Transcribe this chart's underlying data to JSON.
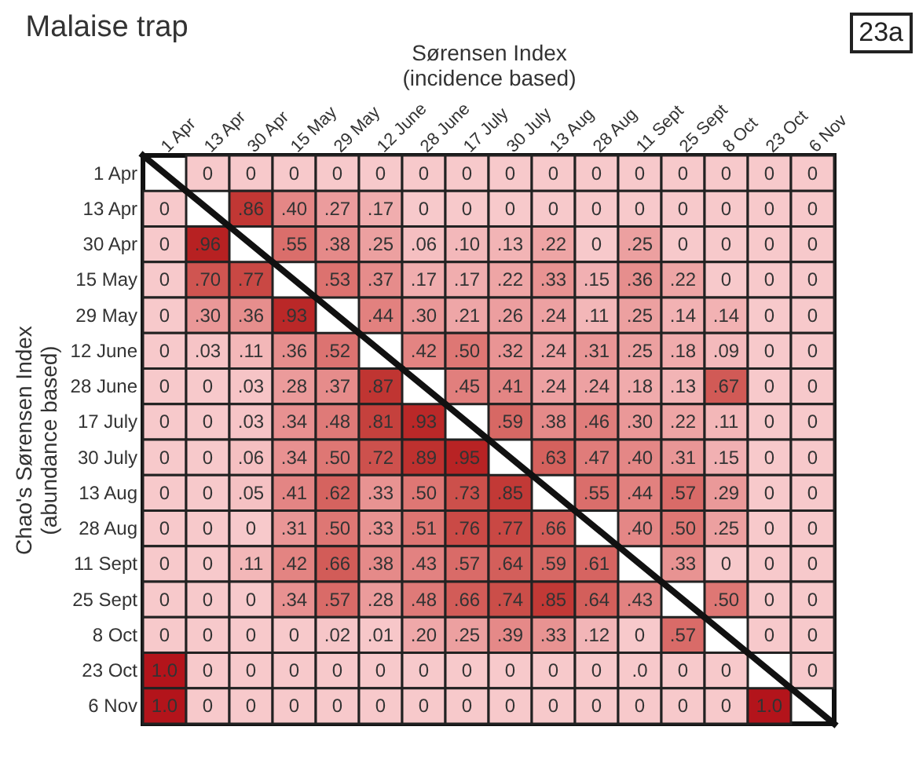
{
  "chart_data": {
    "type": "heatmap",
    "title": "Malaise trap",
    "xlabel": "Sørensen Index\n(incidence  based)",
    "ylabel": "Chao's Sørensen Index\n(abundance based)",
    "annotations": [
      "23a"
    ],
    "categories": [
      "1 Apr",
      "13 Apr",
      "30 Apr",
      "15 May",
      "29 May",
      "12 June",
      "28 June",
      "17 July",
      "30 July",
      "13 Aug",
      "28 Aug",
      "11 Sept",
      "25 Sept",
      "8 Oct",
      "23 Oct",
      "6 Nov"
    ],
    "y_categories": [
      "1 Apr",
      "13 Apr",
      "30 Apr",
      "15 May",
      "29 May",
      "12 June",
      "28 June",
      "17 July",
      "30 July",
      "13 Aug",
      "28 Aug",
      "11 Sept",
      "25 Sept",
      "8 Oct",
      "23 Oct",
      "6 Nov"
    ],
    "cells": [
      [
        null,
        0,
        0,
        0,
        0,
        0,
        0,
        0,
        0,
        0,
        0,
        0,
        0,
        0,
        0,
        0
      ],
      [
        0,
        null,
        0.86,
        0.4,
        0.27,
        0.17,
        0,
        0,
        0,
        0,
        0,
        0,
        0,
        0,
        0,
        0
      ],
      [
        0,
        0.96,
        null,
        0.55,
        0.38,
        0.25,
        0.06,
        0.1,
        0.13,
        0.22,
        0,
        0.25,
        0,
        0,
        0,
        0
      ],
      [
        0,
        0.7,
        0.77,
        null,
        0.53,
        0.37,
        0.17,
        0.17,
        0.22,
        0.33,
        0.15,
        0.36,
        0.22,
        0,
        0,
        0
      ],
      [
        0,
        0.3,
        0.36,
        0.93,
        null,
        0.44,
        0.3,
        0.21,
        0.26,
        0.24,
        0.11,
        0.25,
        0.14,
        0.14,
        0,
        0
      ],
      [
        0,
        0.03,
        0.11,
        0.36,
        0.52,
        null,
        0.42,
        0.5,
        0.32,
        0.24,
        0.31,
        0.25,
        0.18,
        0.09,
        0,
        0
      ],
      [
        0,
        0,
        0.03,
        0.28,
        0.37,
        0.87,
        null,
        0.45,
        0.41,
        0.24,
        0.24,
        0.18,
        0.13,
        0.67,
        0,
        0
      ],
      [
        0,
        0,
        0.03,
        0.34,
        0.48,
        0.81,
        0.93,
        null,
        0.59,
        0.38,
        0.46,
        0.3,
        0.22,
        0.11,
        0,
        0
      ],
      [
        0,
        0,
        0.06,
        0.34,
        0.5,
        0.72,
        0.89,
        0.95,
        null,
        0.63,
        0.47,
        0.4,
        0.31,
        0.15,
        0,
        0
      ],
      [
        0,
        0,
        0.05,
        0.41,
        0.62,
        0.33,
        0.5,
        0.73,
        0.85,
        null,
        0.55,
        0.44,
        0.57,
        0.29,
        0,
        0
      ],
      [
        0,
        0,
        0,
        0.31,
        0.5,
        0.33,
        0.51,
        0.76,
        0.77,
        0.66,
        null,
        0.4,
        0.5,
        0.25,
        0,
        0
      ],
      [
        0,
        0,
        0.11,
        0.42,
        0.66,
        0.38,
        0.43,
        0.57,
        0.64,
        0.59,
        0.61,
        null,
        0.33,
        0,
        0,
        0
      ],
      [
        0,
        0,
        0,
        0.34,
        0.57,
        0.28,
        0.48,
        0.66,
        0.74,
        0.85,
        0.64,
        0.43,
        null,
        0.5,
        0,
        0
      ],
      [
        0,
        0,
        0,
        0,
        0.02,
        0.01,
        0.2,
        0.25,
        0.39,
        0.33,
        0.12,
        0,
        0.57,
        null,
        0,
        0
      ],
      [
        1.0,
        0,
        0,
        0,
        0,
        0,
        0,
        0,
        0,
        0,
        0,
        0,
        0,
        0,
        null,
        0
      ],
      [
        1.0,
        0,
        0,
        0,
        0,
        0,
        0,
        0,
        0,
        0,
        0,
        0,
        0,
        0,
        1.0,
        null
      ]
    ],
    "cell_labels": [
      [
        null,
        "0",
        "0",
        "0",
        "0",
        "0",
        "0",
        "0",
        "0",
        "0",
        "0",
        "0",
        "0",
        "0",
        "0",
        "0"
      ],
      [
        "0",
        null,
        ".86",
        ".40",
        ".27",
        ".17",
        "0",
        "0",
        "0",
        "0",
        "0",
        "0",
        "0",
        "0",
        "0",
        "0"
      ],
      [
        "0",
        ".96",
        null,
        ".55",
        ".38",
        ".25",
        ".06",
        ".10",
        ".13",
        ".22",
        "0",
        ".25",
        "0",
        "0",
        "0",
        "0"
      ],
      [
        "0",
        ".70",
        ".77",
        null,
        ".53",
        ".37",
        ".17",
        ".17",
        ".22",
        ".33",
        ".15",
        ".36",
        ".22",
        "0",
        "0",
        "0"
      ],
      [
        "0",
        ".30",
        ".36",
        ".93",
        null,
        ".44",
        ".30",
        ".21",
        ".26",
        ".24",
        ".11",
        ".25",
        ".14",
        ".14",
        "0",
        "0"
      ],
      [
        "0",
        ".03",
        ".11",
        ".36",
        ".52",
        null,
        ".42",
        ".50",
        ".32",
        ".24",
        ".31",
        ".25",
        ".18",
        ".09",
        "0",
        "0"
      ],
      [
        "0",
        "0",
        ".03",
        ".28",
        ".37",
        ".87",
        null,
        ".45",
        ".41",
        ".24",
        ".24",
        ".18",
        ".13",
        ".67",
        "0",
        "0"
      ],
      [
        "0",
        "0",
        ".03",
        ".34",
        ".48",
        ".81",
        ".93",
        null,
        ".59",
        ".38",
        ".46",
        ".30",
        ".22",
        ".11",
        "0",
        "0"
      ],
      [
        "0",
        "0",
        ".06",
        ".34",
        ".50",
        ".72",
        ".89",
        ".95",
        null,
        ".63",
        ".47",
        ".40",
        ".31",
        ".15",
        "0",
        "0"
      ],
      [
        "0",
        "0",
        ".05",
        ".41",
        ".62",
        ".33",
        ".50",
        ".73",
        ".85",
        null,
        ".55",
        ".44",
        ".57",
        ".29",
        "0",
        "0"
      ],
      [
        "0",
        "0",
        "0",
        ".31",
        ".50",
        ".33",
        ".51",
        ".76",
        ".77",
        ".66",
        null,
        ".40",
        ".50",
        ".25",
        "0",
        "0"
      ],
      [
        "0",
        "0",
        ".11",
        ".42",
        ".66",
        ".38",
        ".43",
        ".57",
        ".64",
        ".59",
        ".61",
        null,
        ".33",
        "0",
        "0",
        "0"
      ],
      [
        "0",
        "0",
        "0",
        ".34",
        ".57",
        ".28",
        ".48",
        ".66",
        ".74",
        ".85",
        ".64",
        ".43",
        null,
        ".50",
        "0",
        "0"
      ],
      [
        "0",
        "0",
        "0",
        "0",
        ".02",
        ".01",
        ".20",
        ".25",
        ".39",
        ".33",
        ".12",
        "0",
        ".57",
        null,
        "0",
        "0"
      ],
      [
        "1.0",
        "0",
        "0",
        "0",
        "0",
        "0",
        "0",
        "0",
        "0",
        "0",
        "0",
        ".0",
        "0",
        "0",
        null,
        "0"
      ],
      [
        "1.0",
        "0",
        "0",
        "0",
        "0",
        "0",
        "0",
        "0",
        "0",
        "0",
        "0",
        "0",
        "0",
        "0",
        "1.0",
        null
      ]
    ]
  }
}
